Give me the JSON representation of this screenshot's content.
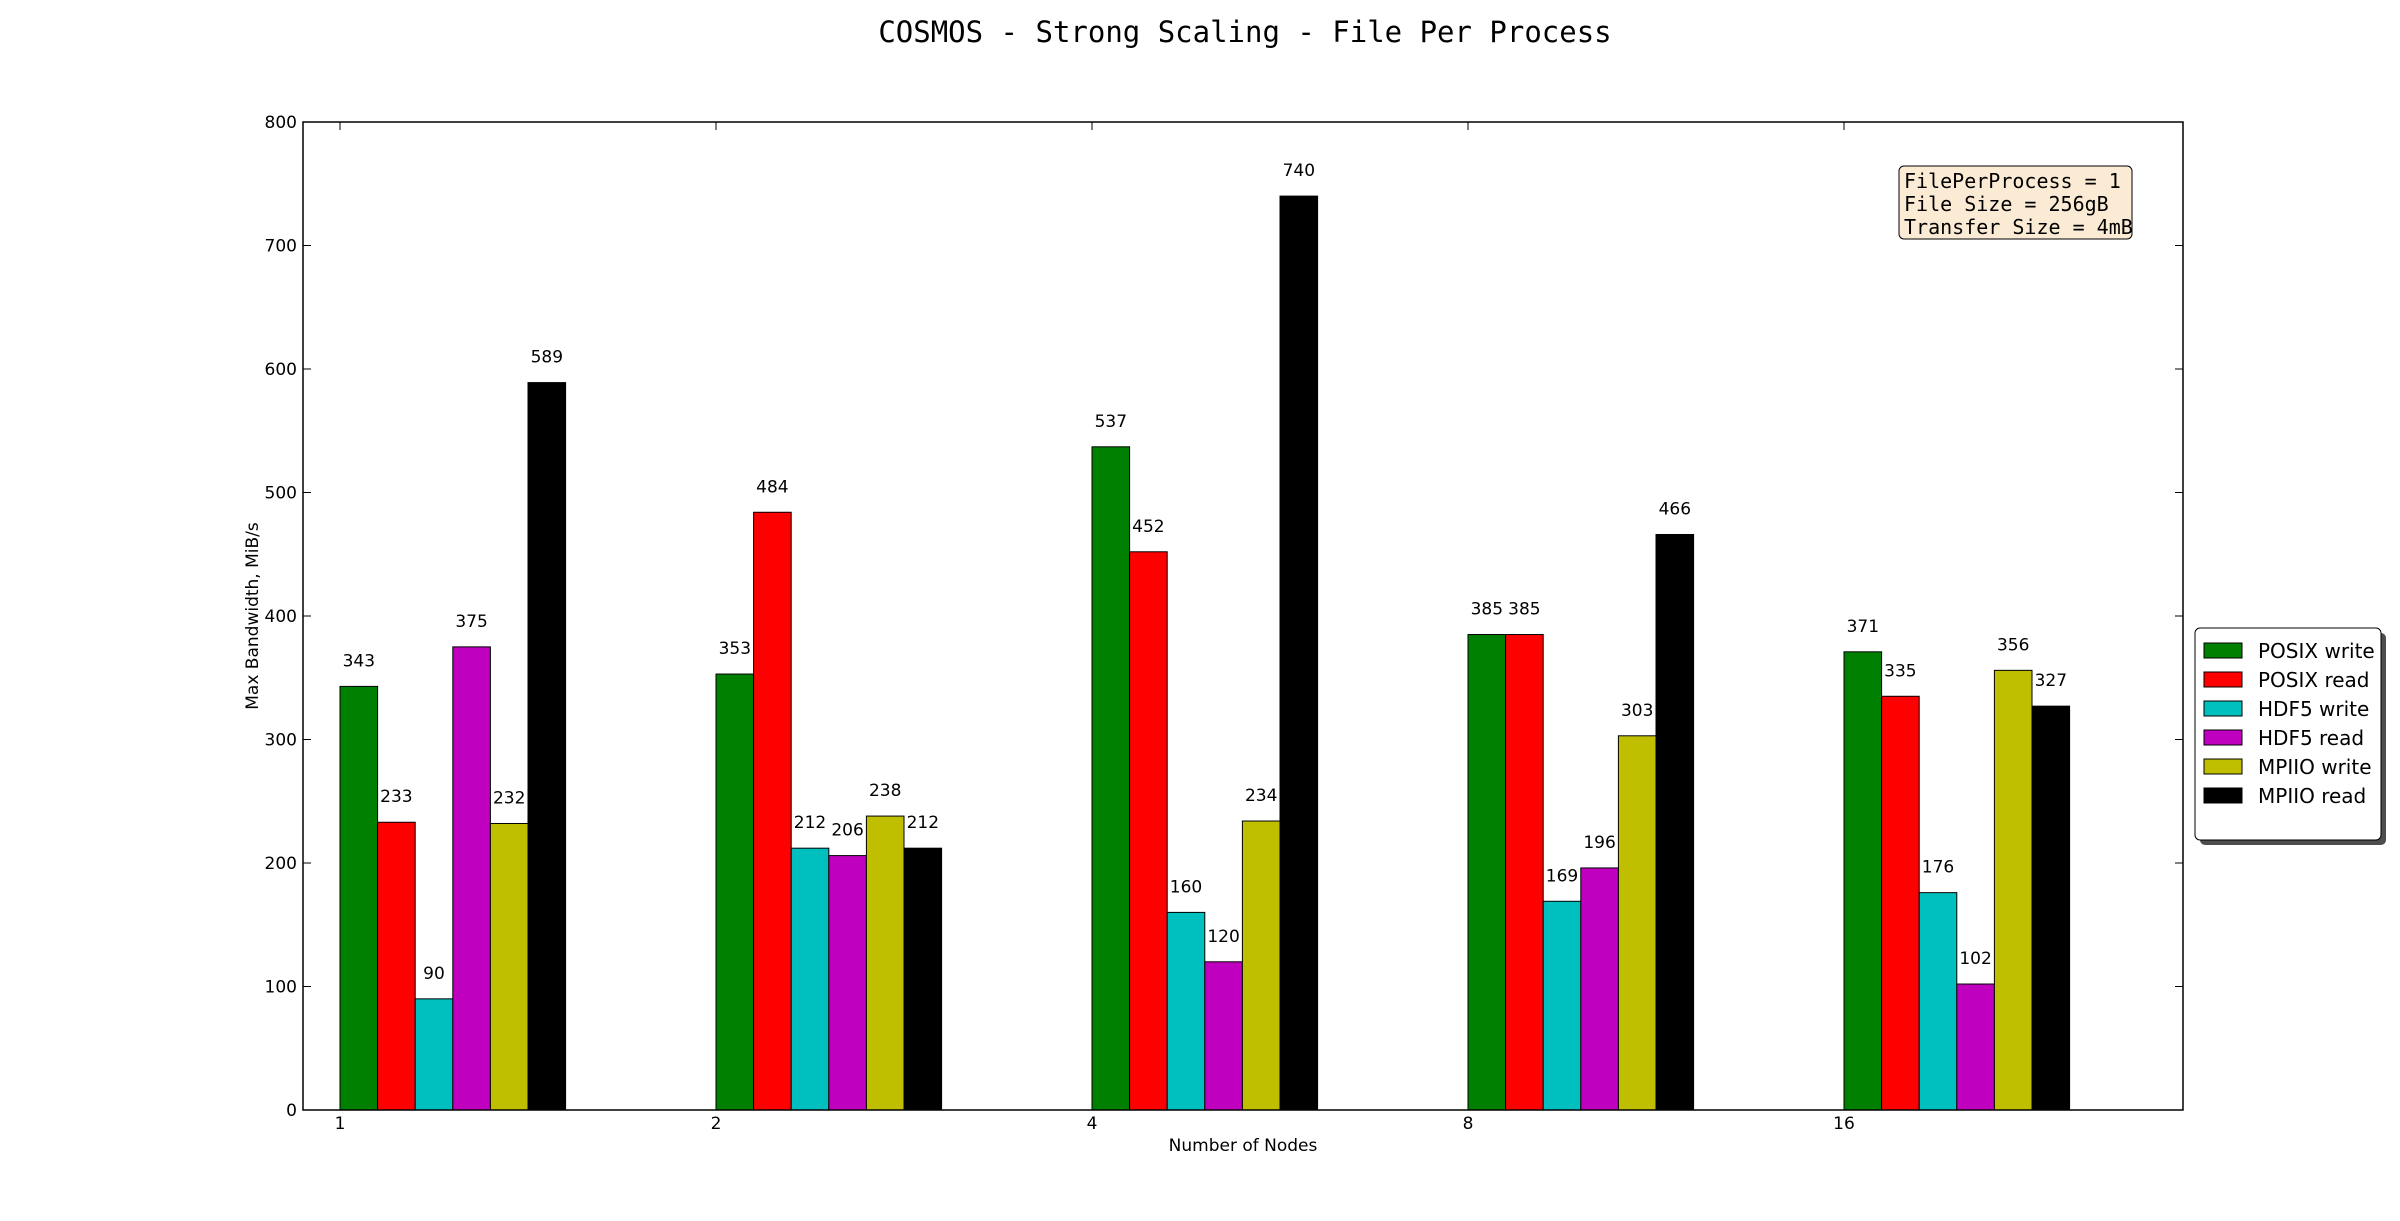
{
  "chart_data": {
    "type": "bar",
    "title": "COSMOS - Strong Scaling - File Per Process",
    "xlabel": "Number of Nodes",
    "ylabel": "Max Bandwidth, MiB/s",
    "categories": [
      "1",
      "2",
      "4",
      "8",
      "16"
    ],
    "ylim": [
      0,
      800
    ],
    "yticks": [
      0,
      100,
      200,
      300,
      400,
      500,
      600,
      700,
      800
    ],
    "grid": false,
    "legend_position": "right",
    "series": [
      {
        "name": "POSIX write",
        "color": "#008000",
        "values": [
          343,
          353,
          537,
          385,
          371
        ]
      },
      {
        "name": "POSIX read",
        "color": "#ff0000",
        "values": [
          233,
          484,
          452,
          385,
          335
        ]
      },
      {
        "name": "HDF5 write",
        "color": "#00bfbf",
        "values": [
          90,
          212,
          160,
          169,
          176
        ]
      },
      {
        "name": "HDF5 read",
        "color": "#bf00bf",
        "values": [
          375,
          206,
          120,
          196,
          102
        ]
      },
      {
        "name": "MPIIO write",
        "color": "#bfbf00",
        "values": [
          232,
          238,
          234,
          303,
          356
        ]
      },
      {
        "name": "MPIIO read",
        "color": "#000000",
        "values": [
          589,
          212,
          740,
          466,
          327
        ]
      }
    ],
    "annotation": [
      "FilePerProcess = 1",
      "File Size = 256gB",
      "Transfer Size = 4mB"
    ]
  }
}
